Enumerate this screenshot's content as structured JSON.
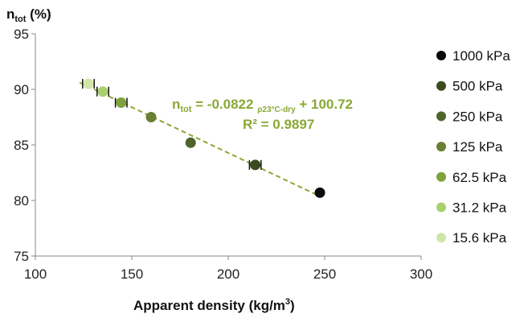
{
  "chart_data": {
    "type": "scatter",
    "ylabel": "n",
    "ylabel_sub": "tot",
    "ylabel_suffix": " (%)",
    "xlabel": "Apparent density (kg/m",
    "xlabel_sup": "3",
    "xlabel_suffix": ")",
    "xlim": [
      100,
      300
    ],
    "ylim": [
      75,
      95
    ],
    "x_ticks": [
      "100",
      "150",
      "200",
      "250",
      "300"
    ],
    "y_ticks": [
      "75",
      "80",
      "85",
      "90",
      "95"
    ],
    "grid": false,
    "legend_position": "right",
    "series": [
      {
        "name": "1000 kPa",
        "color": "#0a0a0a",
        "x": 247.5,
        "y": 80.7,
        "xerr": 0
      },
      {
        "name": "500 kPa",
        "color": "#3b4b1e",
        "x": 214,
        "y": 83.2,
        "xerr": 3
      },
      {
        "name": "250 kPa",
        "color": "#4f6429",
        "x": 180.5,
        "y": 85.2,
        "xerr": 0
      },
      {
        "name": "125 kPa",
        "color": "#687f34",
        "x": 160,
        "y": 87.5,
        "xerr": 0
      },
      {
        "name": "62.5 kPa",
        "color": "#7fa23c",
        "x": 144.5,
        "y": 88.8,
        "xerr": 3
      },
      {
        "name": "31.2 kPa",
        "color": "#a9d06c",
        "x": 135,
        "y": 89.8,
        "xerr": 3
      },
      {
        "name": "15.6 kPa",
        "color": "#cfe6a8",
        "x": 127.5,
        "y": 90.5,
        "xerr": 3
      }
    ],
    "trendline": {
      "slope": -0.0822,
      "intercept": 100.72,
      "x_range": [
        123,
        247.5
      ],
      "color": "#8aa834",
      "style": "dashed"
    },
    "annotation": {
      "eq_lhs": "n",
      "eq_lhs_sub": "tot",
      "eq_mid": " = -0.0822 ",
      "eq_rho_sub": "ρ23°C-dry",
      "eq_tail": " + 100.72",
      "r2": "R² = 0.9897"
    }
  }
}
